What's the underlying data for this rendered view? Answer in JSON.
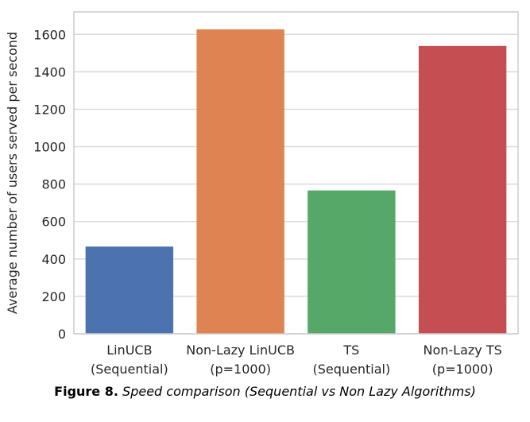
{
  "chart_data": {
    "type": "bar",
    "categories": [
      [
        "LinUCB",
        "(Sequential)"
      ],
      [
        "Non-Lazy LinUCB",
        "(p=1000)"
      ],
      [
        "TS",
        "(Sequential)"
      ],
      [
        "Non-Lazy TS",
        "(p=1000)"
      ]
    ],
    "values": [
      466,
      1627,
      766,
      1538
    ],
    "colors": [
      "#4C72B0",
      "#DD8452",
      "#55A868",
      "#C44E52"
    ],
    "ylabel": "Average number of users served per second",
    "xlabel": "",
    "ylim": [
      0,
      1720
    ],
    "yticks": [
      0,
      200,
      400,
      600,
      800,
      1000,
      1200,
      1400,
      1600
    ],
    "grid": true
  },
  "caption": {
    "figure_label": "Figure 8.",
    "text": "Speed comparison (Sequential vs Non Lazy Algorithms)"
  }
}
